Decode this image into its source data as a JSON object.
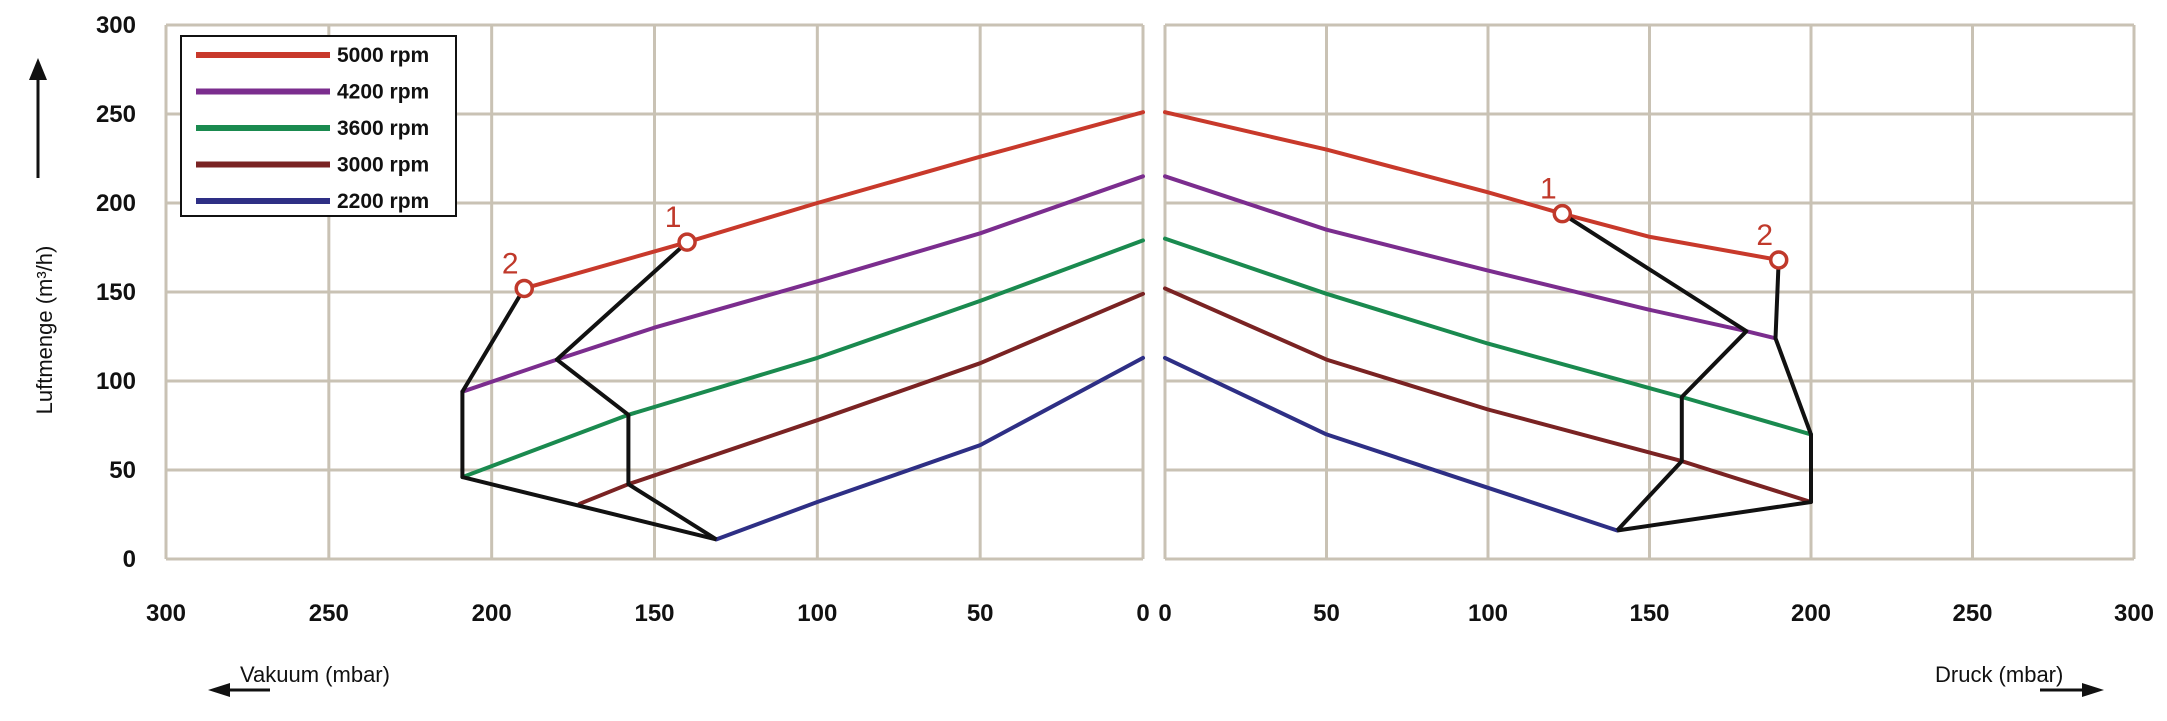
{
  "chart_data": {
    "type": "line",
    "ylabel": "Luftmenge (m³/h)",
    "ylim": [
      0,
      300
    ],
    "yticks": [
      0,
      50,
      100,
      150,
      200,
      250,
      300
    ],
    "grid": true,
    "legend_position": "top-left",
    "left_panel": {
      "xlabel": "Vakuum (mbar)",
      "xlim": [
        300,
        0
      ],
      "xticks": [
        300,
        250,
        200,
        150,
        100,
        50,
        0
      ]
    },
    "right_panel": {
      "xlabel": "Druck (mbar)",
      "xlim": [
        0,
        300
      ],
      "xticks": [
        0,
        50,
        100,
        150,
        200,
        250,
        300
      ]
    },
    "series": [
      {
        "name": "5000 rpm",
        "color": "#c8392b",
        "vakuum": [
          [
            0,
            251
          ],
          [
            50,
            226
          ],
          [
            100,
            200
          ],
          [
            140,
            178
          ],
          [
            190,
            152
          ]
        ],
        "druck": [
          [
            0,
            251
          ],
          [
            50,
            230
          ],
          [
            100,
            206
          ],
          [
            123,
            194
          ],
          [
            150,
            181
          ],
          [
            190,
            168
          ]
        ]
      },
      {
        "name": "4200 rpm",
        "color": "#7b2d8e",
        "vakuum": [
          [
            0,
            215
          ],
          [
            50,
            183
          ],
          [
            100,
            156
          ],
          [
            150,
            130
          ],
          [
            180,
            112
          ],
          [
            209,
            94
          ]
        ],
        "druck": [
          [
            0,
            215
          ],
          [
            50,
            185
          ],
          [
            100,
            162
          ],
          [
            150,
            140
          ],
          [
            180,
            128
          ],
          [
            189,
            124
          ]
        ]
      },
      {
        "name": "3600 rpm",
        "color": "#1a8a4f",
        "vakuum": [
          [
            0,
            179
          ],
          [
            50,
            145
          ],
          [
            100,
            113
          ],
          [
            158,
            81
          ],
          [
            209,
            46
          ]
        ],
        "druck": [
          [
            0,
            180
          ],
          [
            50,
            149
          ],
          [
            100,
            121
          ],
          [
            160,
            91
          ],
          [
            200,
            70
          ]
        ]
      },
      {
        "name": "3000 rpm",
        "color": "#7a2323",
        "vakuum": [
          [
            0,
            149
          ],
          [
            50,
            110
          ],
          [
            100,
            78
          ],
          [
            158,
            42
          ],
          [
            173,
            31
          ]
        ],
        "druck": [
          [
            0,
            152
          ],
          [
            50,
            112
          ],
          [
            100,
            84
          ],
          [
            160,
            55
          ],
          [
            200,
            32
          ]
        ]
      },
      {
        "name": "2200 rpm",
        "color": "#2e2f85",
        "vakuum": [
          [
            0,
            113
          ],
          [
            50,
            64
          ],
          [
            100,
            32
          ],
          [
            131,
            11
          ]
        ],
        "druck": [
          [
            0,
            113
          ],
          [
            50,
            70
          ],
          [
            100,
            40
          ],
          [
            140,
            16
          ]
        ]
      }
    ],
    "boundary_lines": {
      "color": "#111111",
      "vakuum": [
        [
          [
            140,
            178
          ],
          [
            180,
            112
          ],
          [
            158,
            81
          ],
          [
            158,
            42
          ],
          [
            131,
            11
          ]
        ],
        [
          [
            190,
            152
          ],
          [
            209,
            94
          ],
          [
            209,
            46
          ],
          [
            131,
            11
          ]
        ]
      ],
      "druck": [
        [
          [
            123,
            194
          ],
          [
            180,
            128
          ],
          [
            160,
            91
          ],
          [
            160,
            55
          ],
          [
            140,
            16
          ]
        ],
        [
          [
            190,
            168
          ],
          [
            189,
            124
          ],
          [
            200,
            70
          ],
          [
            200,
            32
          ],
          [
            140,
            16
          ]
        ]
      ]
    },
    "markers": [
      {
        "label": "1",
        "panel": "vakuum",
        "x": 140,
        "y": 178
      },
      {
        "label": "2",
        "panel": "vakuum",
        "x": 190,
        "y": 152
      },
      {
        "label": "1",
        "panel": "druck",
        "x": 123,
        "y": 194
      },
      {
        "label": "2",
        "panel": "druck",
        "x": 190,
        "y": 168
      }
    ]
  }
}
